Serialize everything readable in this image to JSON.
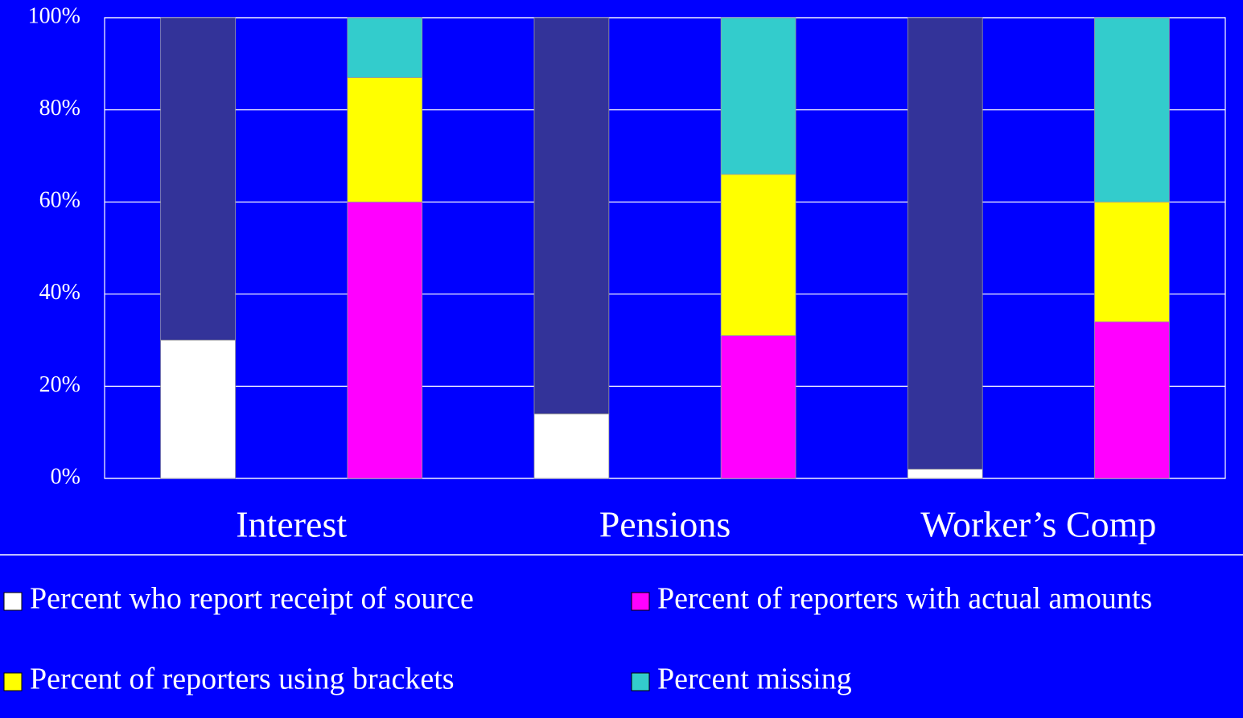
{
  "chart_data": {
    "type": "stacked_bar",
    "categories": [
      "Interest",
      "Pensions",
      "Worker’s Comp"
    ],
    "series": [
      {
        "name": "Percent who report receipt of source",
        "color": "#ffffff",
        "stack": 0,
        "values": [
          30,
          14,
          2
        ]
      },
      {
        "color": "#333399",
        "stack": 0,
        "values": [
          70,
          86,
          98
        ]
      },
      {
        "name": "Percent of reporters with actual amounts",
        "color": "#ff00ff",
        "stack": 1,
        "values": [
          60,
          31,
          34
        ]
      },
      {
        "name": "Percent of reporters using brackets",
        "color": "#ffff00",
        "stack": 1,
        "values": [
          27,
          35,
          26
        ]
      },
      {
        "name": "Percent missing",
        "color": "#33cccc",
        "stack": 1,
        "values": [
          13,
          34,
          40
        ]
      }
    ],
    "ylim": [
      0,
      100
    ],
    "yticks": [
      {
        "value": 0,
        "label": "0%"
      },
      {
        "value": 20,
        "label": "20%"
      },
      {
        "value": 40,
        "label": "40%"
      },
      {
        "value": 60,
        "label": "60%"
      },
      {
        "value": 80,
        "label": "80%"
      },
      {
        "value": 100,
        "label": "100%"
      }
    ],
    "grid": true
  }
}
